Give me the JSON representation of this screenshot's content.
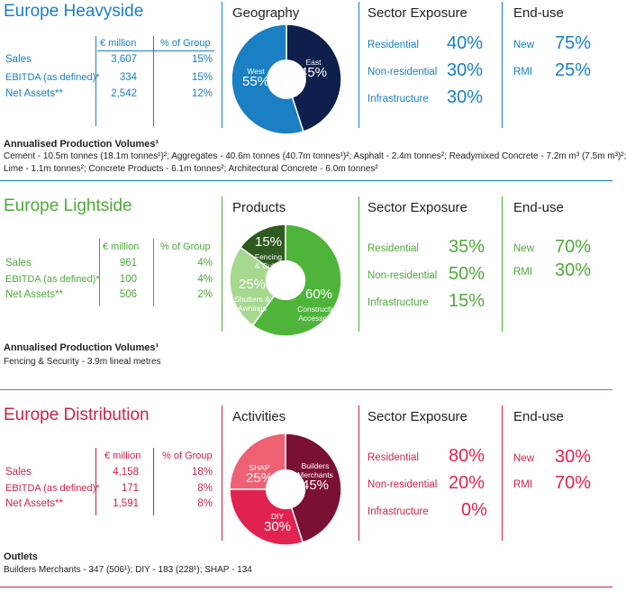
{
  "colors": {
    "heavy": "#1a7fc3",
    "light": "#4ea83a",
    "dist": "#c8244a",
    "text": "#222222"
  },
  "heavyside": {
    "title": "Europe Heavyside",
    "table": {
      "col1": "€ million",
      "col2": "% of Group",
      "rows": [
        {
          "label": "Sales",
          "value": "3,607",
          "pct": "15%"
        },
        {
          "label": "EBITDA (as defined)*",
          "value": "334",
          "pct": "15%"
        },
        {
          "label": "Net Assets**",
          "value": "2,542",
          "pct": "12%"
        }
      ]
    },
    "chart_title": "Geography",
    "chart_data": {
      "type": "pie",
      "slices": [
        {
          "name": "East",
          "value": 45,
          "label": "45%",
          "color": "#0d1f4a"
        },
        {
          "name": "West",
          "value": 55,
          "label": "55%",
          "color": "#1a7fc3"
        }
      ]
    },
    "sector": {
      "title": "Sector Exposure",
      "rows": [
        {
          "label": "Residential",
          "value": "40%"
        },
        {
          "label": "Non-residential",
          "value": "30%"
        },
        {
          "label": "Infrastructure",
          "value": "30%"
        }
      ]
    },
    "enduse": {
      "title": "End-use",
      "rows": [
        {
          "label": "New",
          "value": "75%"
        },
        {
          "label": "RMI",
          "value": "25%"
        }
      ]
    },
    "notes_title": "Annualised Production Volumes¹",
    "notes": [
      "Cement - 10.5m tonnes (18.1m tonnes¹)²; Aggregates - 40.6m tonnes (40.7m tonnes¹)²; Asphalt - 2.4m tonnes²; Readymixed Concrete - 7.2m m³ (7.5m m³)²;",
      "Lime - 1.1m tonnes²; Concrete Products - 6.1m tonnes²; Architectural Concrete - 6.0m tonnes²"
    ]
  },
  "lightside": {
    "title": "Europe Lightside",
    "table": {
      "col1": "€ million",
      "col2": "% of Group",
      "rows": [
        {
          "label": "Sales",
          "value": "961",
          "pct": "4%"
        },
        {
          "label": "EBITDA (as defined)*",
          "value": "100",
          "pct": "4%"
        },
        {
          "label": "Net Assets**",
          "value": "506",
          "pct": "2%"
        }
      ]
    },
    "chart_title": "Products",
    "chart_data": {
      "type": "pie",
      "slices": [
        {
          "name": "Fencing & Cubis",
          "value": 15,
          "label": "15%",
          "color": "#2f5a1f"
        },
        {
          "name": "Construction Accessories",
          "value": 60,
          "label": "60%",
          "color": "#4eb53a"
        },
        {
          "name": "Shutters & Awnings",
          "value": 25,
          "label": "25%",
          "color": "#a6d890"
        }
      ]
    },
    "sector": {
      "title": "Sector Exposure",
      "rows": [
        {
          "label": "Residential",
          "value": "35%"
        },
        {
          "label": "Non-residential",
          "value": "50%"
        },
        {
          "label": "Infrastructure",
          "value": "15%"
        }
      ]
    },
    "enduse": {
      "title": "End-use",
      "rows": [
        {
          "label": "New",
          "value": "70%"
        },
        {
          "label": "RMI",
          "value": "30%"
        }
      ]
    },
    "notes_title": "Annualised Production Volumes¹",
    "notes": [
      "Fencing & Security - 3.9m lineal metres"
    ]
  },
  "distribution": {
    "title": "Europe Distribution",
    "table": {
      "col1": "€ million",
      "col2": "% of Group",
      "rows": [
        {
          "label": "Sales",
          "value": "4,158",
          "pct": "18%"
        },
        {
          "label": "EBITDA (as defined)*",
          "value": "171",
          "pct": "8%"
        },
        {
          "label": "Net Assets**",
          "value": "1,591",
          "pct": "8%"
        }
      ]
    },
    "chart_title": "Activities",
    "chart_data": {
      "type": "pie",
      "slices": [
        {
          "name": "Builders Merchants",
          "value": 45,
          "label": "45%",
          "color": "#7b1035"
        },
        {
          "name": "DIY",
          "value": 30,
          "label": "30%",
          "color": "#e02350"
        },
        {
          "name": "SHAP",
          "value": 25,
          "label": "25%",
          "color": "#ee6173"
        }
      ]
    },
    "sector": {
      "title": "Sector Exposure",
      "rows": [
        {
          "label": "Residential",
          "value": "80%"
        },
        {
          "label": "Non-residential",
          "value": "20%"
        },
        {
          "label": "Infrastructure",
          "value": "0%"
        }
      ]
    },
    "enduse": {
      "title": "End-use",
      "rows": [
        {
          "label": "New",
          "value": "30%"
        },
        {
          "label": "RMI",
          "value": "70%"
        }
      ]
    },
    "notes_title": "Outlets",
    "notes": [
      "Builders Merchants - 347 (506¹); DIY - 183 (228¹); SHAP - 134"
    ]
  }
}
